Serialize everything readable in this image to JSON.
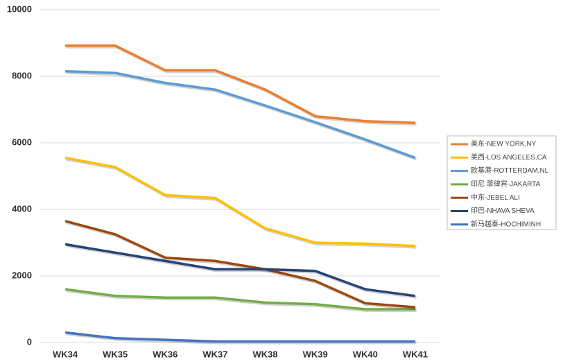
{
  "chart_data": {
    "type": "line",
    "categories": [
      "WK34",
      "WK35",
      "WK36",
      "WK37",
      "WK38",
      "WK39",
      "WK40",
      "WK41"
    ],
    "series": [
      {
        "name": "美东-NEW YORK,NY",
        "color": "#ed7d31",
        "values": [
          8920,
          8920,
          8180,
          8180,
          7600,
          6800,
          6650,
          6600
        ]
      },
      {
        "name": "美西-LOS ANGELES,CA",
        "color": "#ffc000",
        "values": [
          5550,
          5270,
          4430,
          4340,
          3430,
          3000,
          2970,
          2900
        ]
      },
      {
        "name": "欧基港-ROTTERDAM,NL",
        "color": "#5b9bd5",
        "values": [
          8150,
          8100,
          7800,
          7600,
          7120,
          6620,
          6100,
          5550
        ]
      },
      {
        "name": "印尼 菲律宾-JAKARTA",
        "color": "#70ad47",
        "values": [
          1600,
          1400,
          1350,
          1350,
          1200,
          1150,
          1000,
          1000
        ]
      },
      {
        "name": "中东-JEBEL ALI",
        "color": "#9e480e",
        "values": [
          3650,
          3250,
          2550,
          2450,
          2200,
          1850,
          1180,
          1060
        ]
      },
      {
        "name": "印巴-NHAVA SHEVA",
        "color": "#264478",
        "values": [
          2950,
          2700,
          2450,
          2200,
          2200,
          2150,
          1600,
          1400
        ]
      },
      {
        "name": "新马越泰-HOCHIMINH",
        "color": "#4472c4",
        "values": [
          300,
          130,
          80,
          30,
          30,
          30,
          30,
          30
        ]
      }
    ],
    "ylim": [
      0,
      10000
    ],
    "yticks": [
      0,
      2000,
      4000,
      6000,
      8000,
      10000
    ],
    "grid": true,
    "legend": "right"
  }
}
